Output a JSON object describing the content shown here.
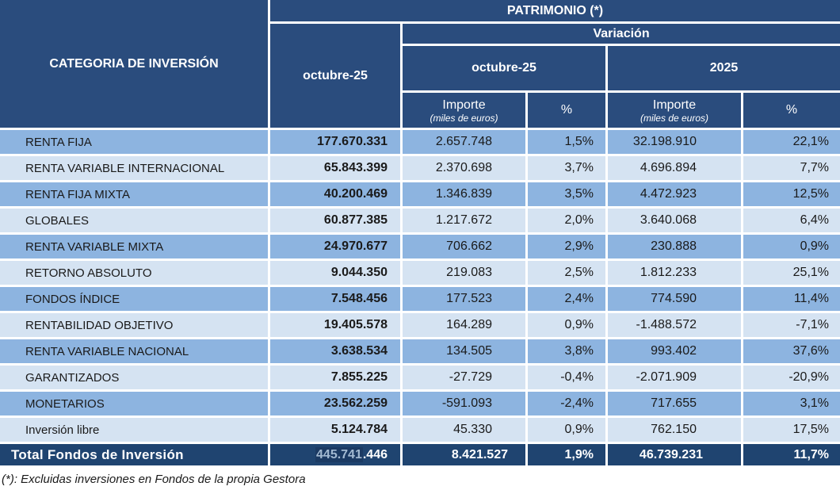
{
  "header": {
    "category_col": "CATEGORIA DE INVERSIÓN",
    "patrimonio": "PATRIMONIO (*)",
    "patrimonio_month": "octubre-25",
    "variacion": "Variación",
    "variacion_month": "octubre-25",
    "variacion_year": "2025",
    "importe_label": "Importe",
    "importe_sub": "(miles de euros)",
    "pct_label": "%"
  },
  "rows": [
    {
      "label": "RENTA FIJA",
      "patrimonio": "177.670.331",
      "var_month_importe": "2.657.748",
      "var_month_pct": "1,5%",
      "var_year_importe": "32.198.910",
      "var_year_pct": "22,1%"
    },
    {
      "label": "RENTA VARIABLE INTERNACIONAL",
      "patrimonio": "65.843.399",
      "var_month_importe": "2.370.698",
      "var_month_pct": "3,7%",
      "var_year_importe": "4.696.894",
      "var_year_pct": "7,7%"
    },
    {
      "label": "RENTA FIJA MIXTA",
      "patrimonio": "40.200.469",
      "var_month_importe": "1.346.839",
      "var_month_pct": "3,5%",
      "var_year_importe": "4.472.923",
      "var_year_pct": "12,5%"
    },
    {
      "label": "GLOBALES",
      "patrimonio": "60.877.385",
      "var_month_importe": "1.217.672",
      "var_month_pct": "2,0%",
      "var_year_importe": "3.640.068",
      "var_year_pct": "6,4%"
    },
    {
      "label": "RENTA VARIABLE MIXTA",
      "patrimonio": "24.970.677",
      "var_month_importe": "706.662",
      "var_month_pct": "2,9%",
      "var_year_importe": "230.888",
      "var_year_pct": "0,9%"
    },
    {
      "label": "RETORNO ABSOLUTO",
      "patrimonio": "9.044.350",
      "var_month_importe": "219.083",
      "var_month_pct": "2,5%",
      "var_year_importe": "1.812.233",
      "var_year_pct": "25,1%"
    },
    {
      "label": "FONDOS ÍNDICE",
      "patrimonio": "7.548.456",
      "var_month_importe": "177.523",
      "var_month_pct": "2,4%",
      "var_year_importe": "774.590",
      "var_year_pct": "11,4%"
    },
    {
      "label": "RENTABILIDAD OBJETIVO",
      "patrimonio": "19.405.578",
      "var_month_importe": "164.289",
      "var_month_pct": "0,9%",
      "var_year_importe": "-1.488.572",
      "var_year_pct": "-7,1%"
    },
    {
      "label": "RENTA VARIABLE NACIONAL",
      "patrimonio": "3.638.534",
      "var_month_importe": "134.505",
      "var_month_pct": "3,8%",
      "var_year_importe": "993.402",
      "var_year_pct": "37,6%"
    },
    {
      "label": "GARANTIZADOS",
      "patrimonio": "7.855.225",
      "var_month_importe": "-27.729",
      "var_month_pct": "-0,4%",
      "var_year_importe": "-2.071.909",
      "var_year_pct": "-20,9%"
    },
    {
      "label": "MONETARIOS",
      "patrimonio": "23.562.259",
      "var_month_importe": "-591.093",
      "var_month_pct": "-2,4%",
      "var_year_importe": "717.655",
      "var_year_pct": "3,1%"
    },
    {
      "label": "Inversión libre",
      "patrimonio": "5.124.784",
      "var_month_importe": "45.330",
      "var_month_pct": "0,9%",
      "var_year_importe": "762.150",
      "var_year_pct": "17,5%"
    }
  ],
  "total": {
    "label": "Total Fondos de Inversión",
    "patrimonio_highlight": "445.741",
    "patrimonio_rest": ".446",
    "var_month_importe": "8.421.527",
    "var_month_pct": "1,9%",
    "var_year_importe": "46.739.231",
    "var_year_pct": "11,7%"
  },
  "footnote": "(*): Excluidas inversiones en Fondos de la propia Gestora",
  "colors": {
    "header_bg": "#2A4C7D",
    "row_dark": "#8DB4E0",
    "row_light": "#D5E3F2",
    "total_bg": "#1F4470",
    "selection_bg": "#1B3A63",
    "selection_text": "#A3BAD2",
    "gridline": "#FFFFFF"
  }
}
